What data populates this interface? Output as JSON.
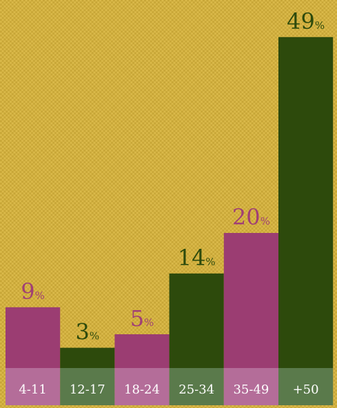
{
  "edge_fragment": ")",
  "chart_data": {
    "type": "bar",
    "title": "",
    "xlabel": "",
    "ylabel": "",
    "ylim": [
      0,
      50
    ],
    "grid": false,
    "legend": "none",
    "unit": "%",
    "categories": [
      "4-11",
      "12-17",
      "18-24",
      "25-34",
      "35-49",
      "+50"
    ],
    "values": [
      9,
      3,
      5,
      14,
      20,
      49
    ],
    "bar_colors": [
      "#9b3d72",
      "#2d4a0c",
      "#9b3d72",
      "#2d4a0c",
      "#9b3d72",
      "#2d4a0c"
    ],
    "label_bg_colors": [
      "#b46d99",
      "#5a7a4b",
      "#b46d99",
      "#5a7a4b",
      "#b46d99",
      "#5a7a4b"
    ],
    "value_label_colors": [
      "#a03f75",
      "#2d4a0c",
      "#a03f75",
      "#2d4a0c",
      "#a03f75",
      "#2d4a0c"
    ]
  }
}
